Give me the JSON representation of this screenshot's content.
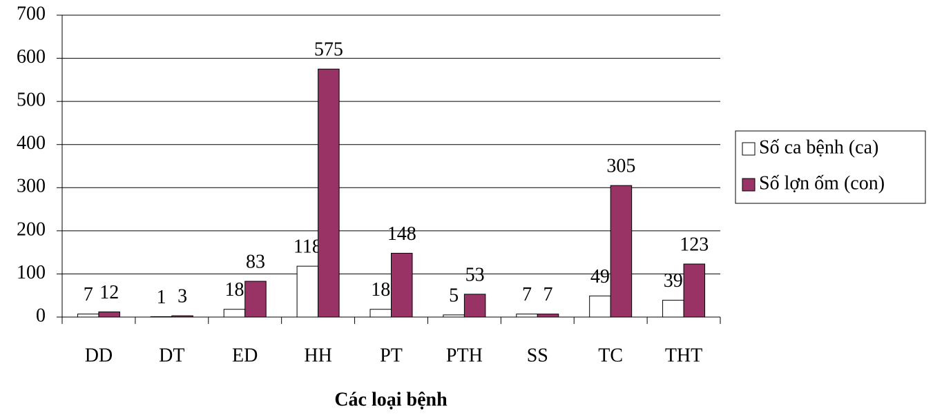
{
  "chart_data": {
    "type": "bar",
    "x_label": "Các loại bệnh",
    "categories": [
      "DD",
      "DT",
      "ED",
      "HH",
      "PT",
      "PTH",
      "SS",
      "TC",
      "THT"
    ],
    "series": [
      {
        "name": "Số ca bệnh (ca)",
        "color": "#ffffff",
        "values": [
          7,
          1,
          18,
          118,
          18,
          5,
          7,
          49,
          39
        ]
      },
      {
        "name": "Số lợn ốm (con)",
        "color": "#993366",
        "values": [
          12,
          3,
          83,
          575,
          148,
          53,
          7,
          305,
          123
        ]
      }
    ],
    "ylim": [
      0,
      700
    ],
    "yticks": [
      0,
      100,
      200,
      300,
      400,
      500,
      600,
      700
    ],
    "grid": true,
    "legend": "right"
  }
}
